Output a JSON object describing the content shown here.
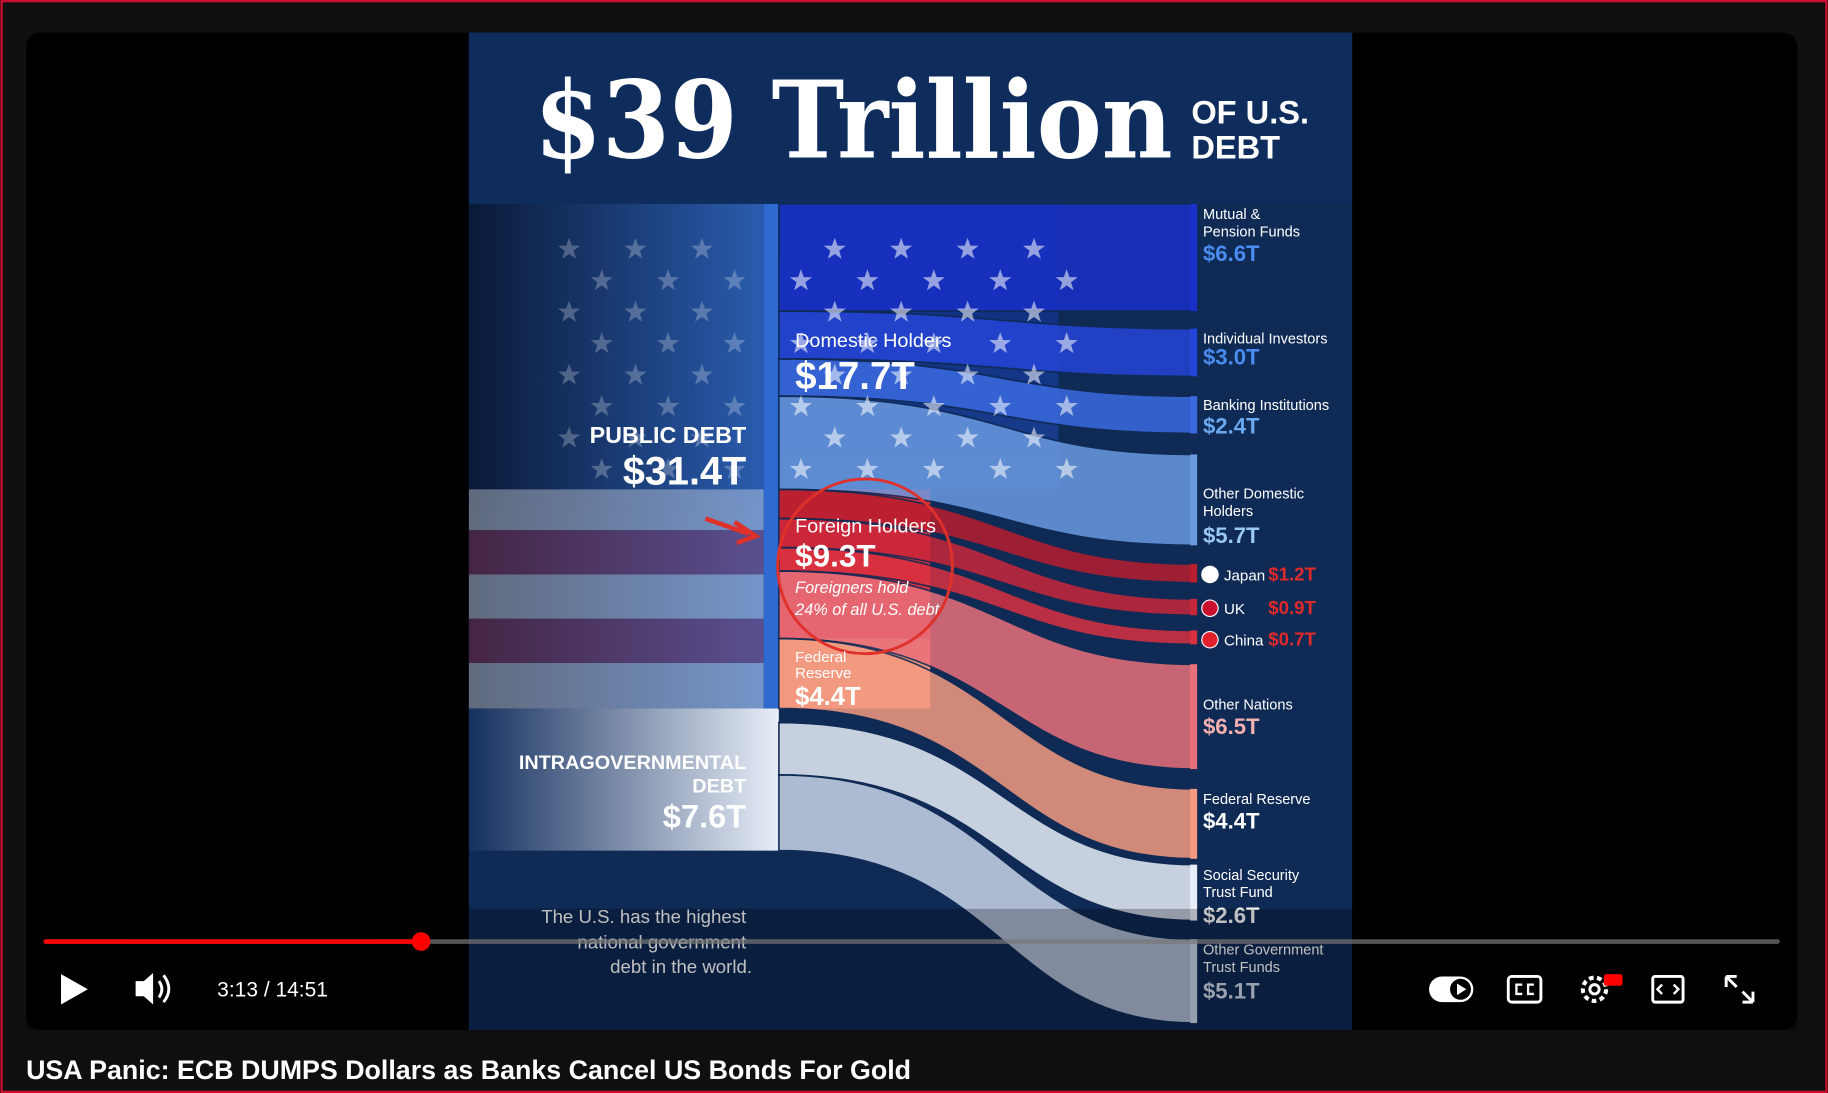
{
  "video": {
    "title": "USA Panic: ECB DUMPS Dollars as Banks Cancel US Bonds For Gold",
    "time": "3:13 / 14:51"
  },
  "infographic": {
    "headline": "$39 Trillion",
    "headline_suffix": [
      "OF U.S.",
      "DEBT"
    ],
    "public_debt": {
      "label": "PUBLIC DEBT",
      "value": "$31.4T"
    },
    "intragovernmental": {
      "label": [
        "INTRAGOVERNMENTAL",
        "DEBT"
      ],
      "value": "$7.6T"
    },
    "domestic": {
      "label": "Domestic Holders",
      "value": "$17.7T"
    },
    "foreign": {
      "label": "Foreign Holders",
      "value": "$9.3T",
      "note": [
        "Foreigners hold",
        "24% of all U.S. debt"
      ]
    },
    "federal_reserve": {
      "label": [
        "Federal",
        "Reserve"
      ],
      "value": "$4.4T"
    },
    "holders": [
      {
        "label": [
          "Mutual &",
          "Pension Funds"
        ],
        "value": "$6.6T"
      },
      {
        "label": [
          "Individual Investors"
        ],
        "value": "$3.0T"
      },
      {
        "label": [
          "Banking Institutions"
        ],
        "value": "$2.4T"
      },
      {
        "label": [
          "Other Domestic",
          "Holders"
        ],
        "value": "$5.7T"
      },
      {
        "label": [
          "Japan"
        ],
        "value": "$1.2T"
      },
      {
        "label": [
          "UK"
        ],
        "value": "$0.9T"
      },
      {
        "label": [
          "China"
        ],
        "value": "$0.7T"
      },
      {
        "label": [
          "Other Nations"
        ],
        "value": "$6.5T"
      },
      {
        "label": [
          "Federal Reserve"
        ],
        "value": "$4.4T"
      },
      {
        "label": [
          "Social Security",
          "Trust Fund"
        ],
        "value": "$2.6T"
      },
      {
        "label": [
          "Other Government",
          "Trust Funds"
        ],
        "value": "$5.1T"
      }
    ],
    "footnote": [
      "The U.S. has the highest",
      "national government",
      "debt in the world."
    ]
  }
}
